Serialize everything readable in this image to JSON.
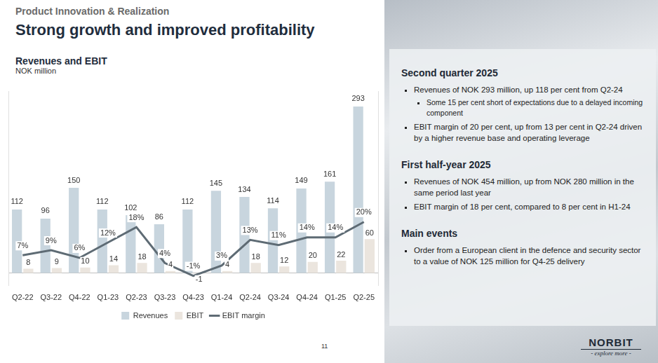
{
  "header": {
    "kicker": "Product Innovation & Realization",
    "title": "Strong growth and improved profitability"
  },
  "chart_data": {
    "type": "bar",
    "title": "Revenues and EBIT",
    "subtitle": "NOK million",
    "categories": [
      "Q2-22",
      "Q3-22",
      "Q4-22",
      "Q1-23",
      "Q2-23",
      "Q3-23",
      "Q4-23",
      "Q1-24",
      "Q2-24",
      "Q3-24",
      "Q4-24",
      "Q1-25",
      "Q2-25"
    ],
    "series": [
      {
        "name": "Revenues",
        "type": "bar",
        "color": "#c8d5de",
        "values": [
          112,
          96,
          150,
          112,
          102,
          86,
          112,
          145,
          134,
          114,
          149,
          161,
          293
        ]
      },
      {
        "name": "EBIT",
        "type": "bar",
        "color": "#ebe5de",
        "values": [
          8,
          9,
          10,
          14,
          18,
          4,
          -1,
          4,
          18,
          12,
          20,
          22,
          60
        ]
      },
      {
        "name": "EBIT margin",
        "type": "line",
        "color": "#5e6b74",
        "axis": "y2",
        "marker": "none",
        "values": [
          7,
          9,
          6,
          12,
          18,
          4,
          -1,
          3,
          13,
          11,
          14,
          14,
          20
        ],
        "value_labels": [
          "7%",
          "9%",
          "6%",
          "12%",
          "18%",
          "4%",
          "-1%",
          "3%",
          "13%",
          "11%",
          "14%",
          "14%",
          "20%"
        ]
      }
    ],
    "ylim": [
      -22,
      320
    ],
    "yticks": [
      0
    ],
    "y2lim": [
      -4.9,
      71.1
    ],
    "y2ticks": [
      0
    ],
    "grid": true,
    "legend": "bottom",
    "data_labels": true,
    "tick_labels": "x"
  },
  "panel": {
    "sections": [
      {
        "heading": "Second quarter 2025",
        "bullets": [
          {
            "text": "Revenues of NOK 293 million, up 118 per cent from Q2-24",
            "sub": [
              "Some 15 per cent short of expectations due to a delayed incoming component"
            ]
          },
          {
            "text": "EBIT margin of 20 per cent, up from 13 per cent in Q2-24 driven by a higher revenue base and operating leverage",
            "sub": []
          }
        ]
      },
      {
        "heading": "First half-year 2025",
        "bullets": [
          {
            "text": "Revenues of NOK 454 million, up from NOK 280 million in the same period last year",
            "sub": []
          },
          {
            "text": "EBIT margin of 18 per cent, compared to 8 per cent in H1-24",
            "sub": []
          }
        ]
      },
      {
        "heading": "Main events",
        "bullets": [
          {
            "text": "Order from a European client in the defence and security sector to a value of NOK 125 million for Q4-25 delivery",
            "sub": []
          }
        ]
      }
    ]
  },
  "footer": {
    "page": "11",
    "logo": "NORBIT",
    "tagline": "- explore more -"
  }
}
